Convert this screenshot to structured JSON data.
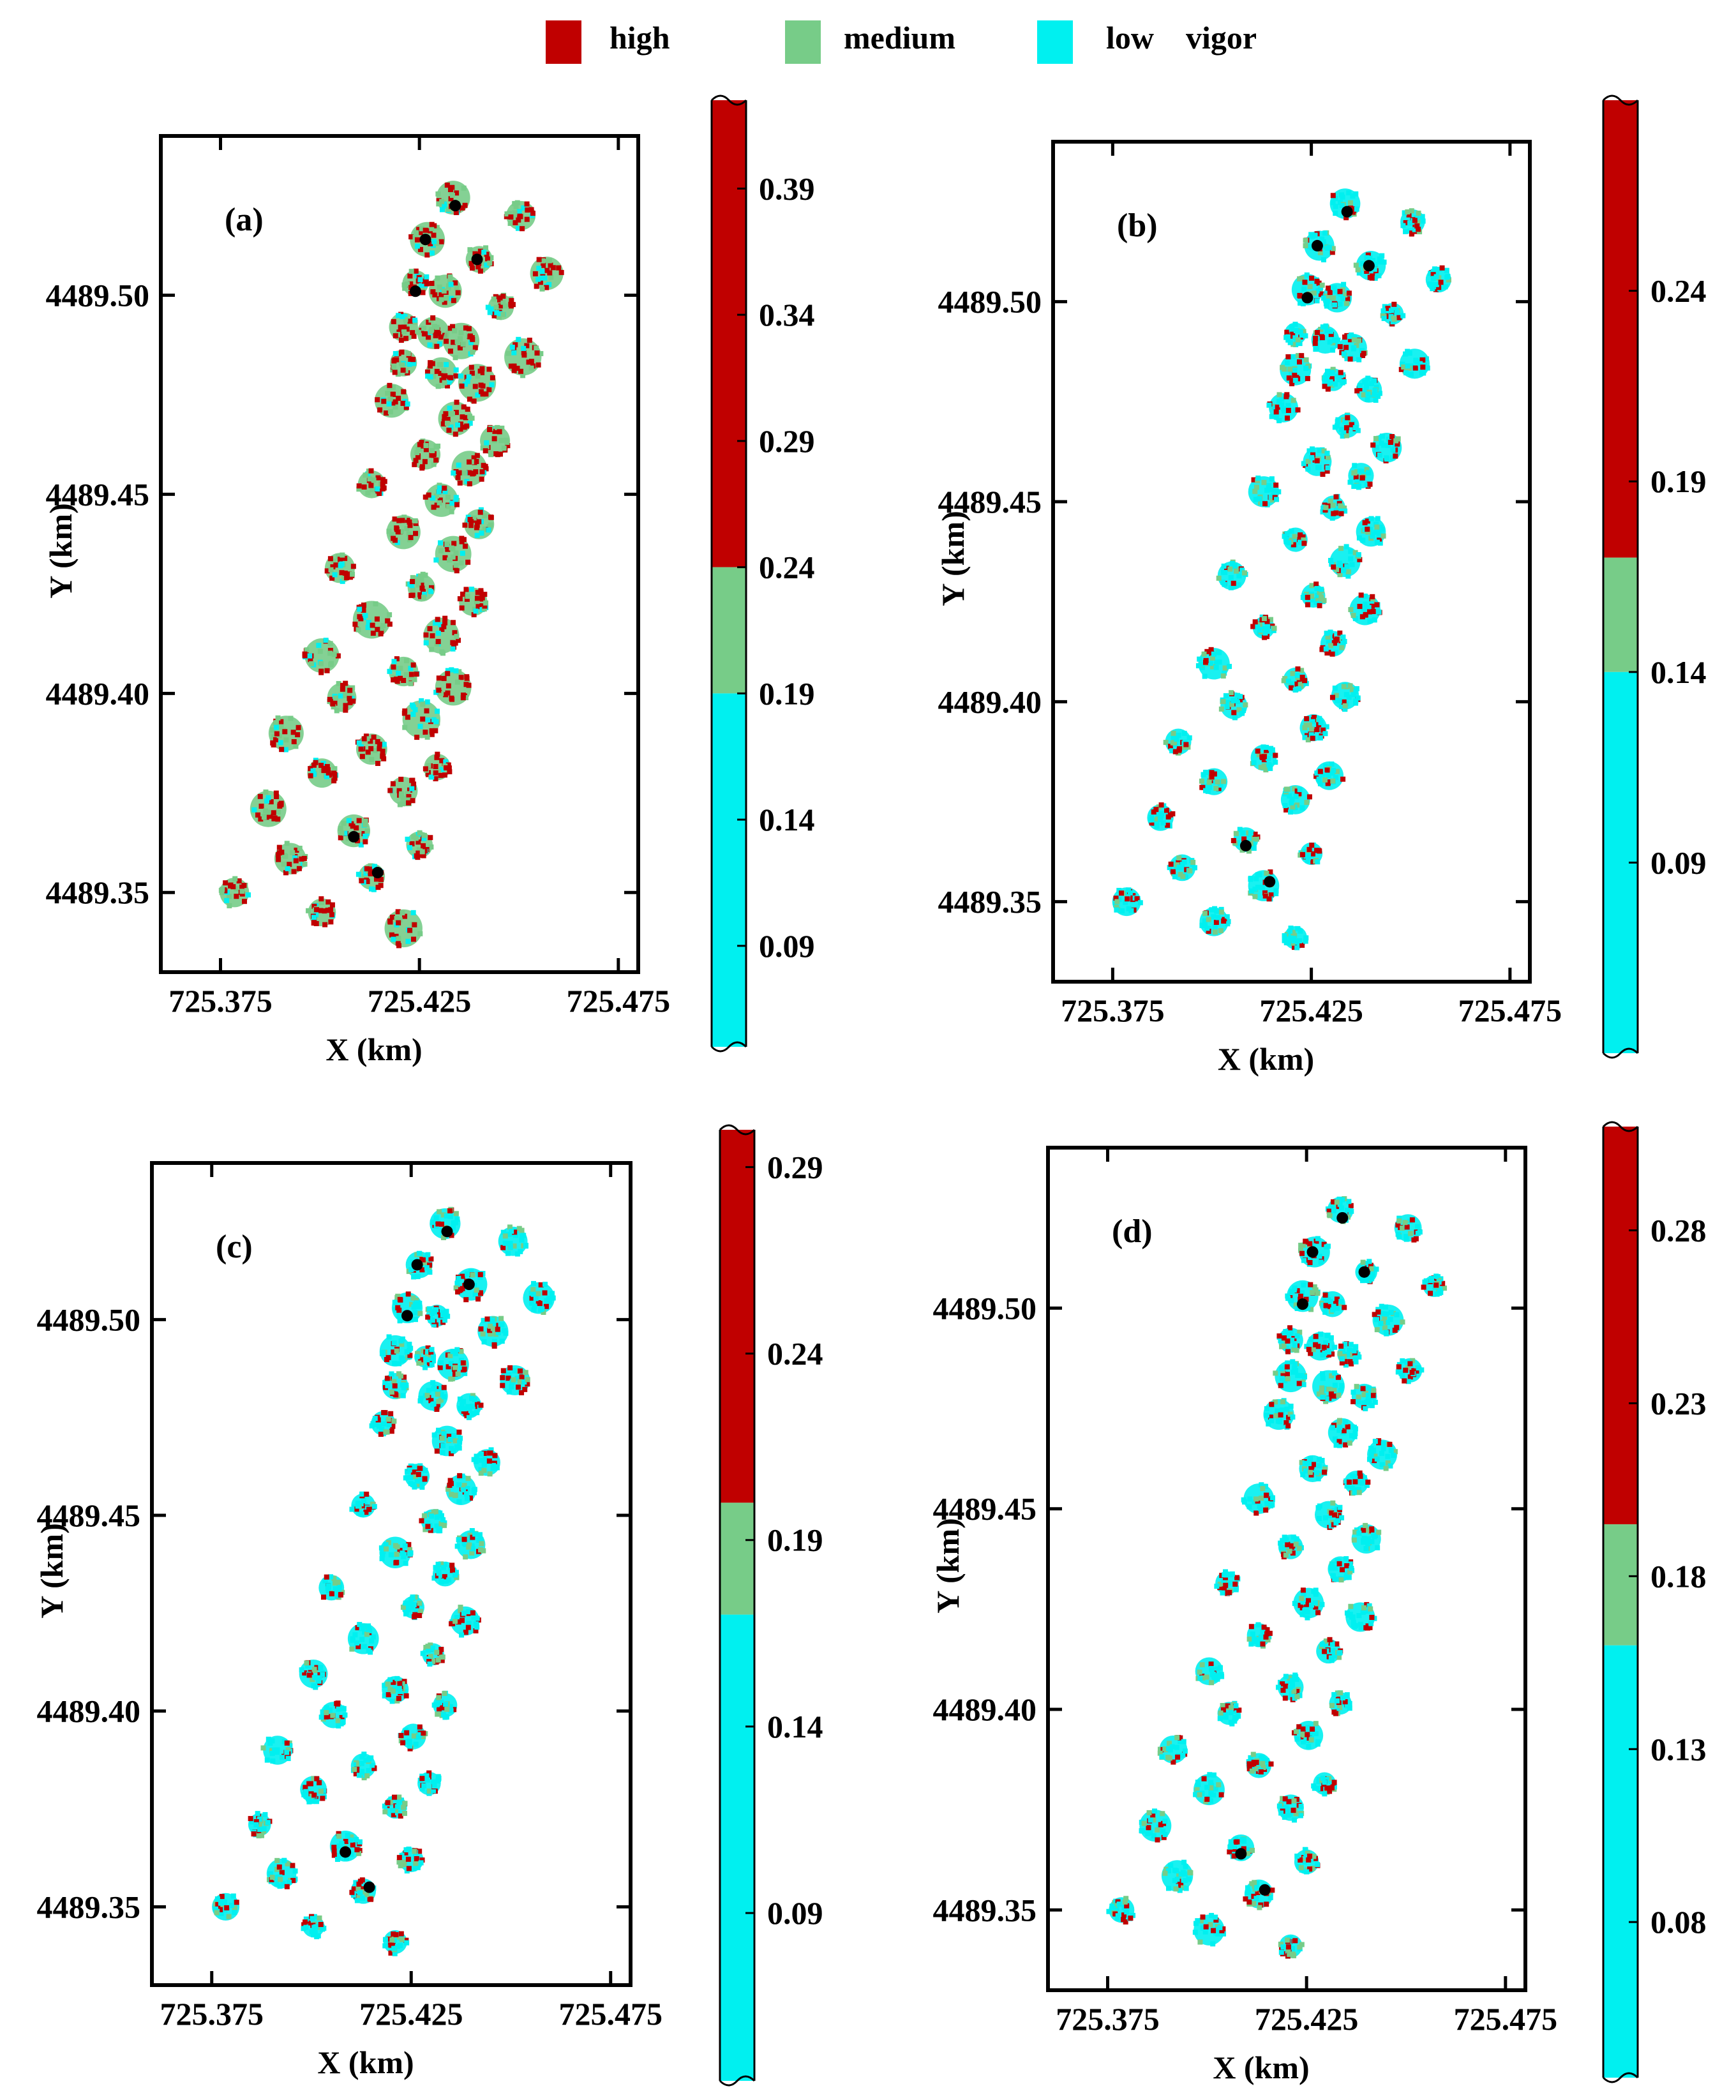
{
  "legend": [
    {
      "label": "high",
      "color": "#c00000"
    },
    {
      "label": "medium",
      "color": "#77cc88"
    },
    {
      "label": "low    vigor",
      "color": "#00f0f0"
    }
  ],
  "chart_data": [
    {
      "type": "scatter",
      "title": "(a)",
      "xlabel": "X (km)",
      "ylabel": "Y (km)",
      "xlim": [
        725.36,
        725.48
      ],
      "ylim": [
        4489.33,
        4489.54
      ],
      "xticks": [
        725.375,
        725.425,
        725.475
      ],
      "xtick_labels": [
        "725.375",
        "725.425",
        "725.475"
      ],
      "yticks": [
        4489.35,
        4489.4,
        4489.45,
        4489.5
      ],
      "ytick_labels": [
        "4489.35",
        "4489.40",
        "4489.45",
        "4489.50"
      ],
      "colorbar": {
        "range": [
          0.05,
          0.425
        ],
        "medium_range": [
          0.19,
          0.24
        ],
        "ticks": [
          0.09,
          0.14,
          0.19,
          0.24,
          0.29,
          0.34,
          0.39
        ],
        "tick_labels": [
          "0.09",
          "0.14",
          "0.19",
          "0.24",
          "0.29",
          "0.34",
          "0.39"
        ]
      }
    },
    {
      "type": "scatter",
      "title": "(b)",
      "xlabel": "X (km)",
      "ylabel": "Y (km)",
      "xlim": [
        725.36,
        725.48
      ],
      "ylim": [
        4489.33,
        4489.54
      ],
      "xticks": [
        725.375,
        725.425,
        725.475
      ],
      "xtick_labels": [
        "725.375",
        "725.425",
        "725.475"
      ],
      "yticks": [
        4489.35,
        4489.4,
        4489.45,
        4489.5
      ],
      "ytick_labels": [
        "4489.35",
        "4489.40",
        "4489.45",
        "4489.50"
      ],
      "colorbar": {
        "range": [
          0.04,
          0.29
        ],
        "medium_range": [
          0.14,
          0.17
        ],
        "ticks": [
          0.09,
          0.14,
          0.19,
          0.24
        ],
        "tick_labels": [
          "0.09",
          "0.14",
          "0.19",
          "0.24"
        ]
      }
    },
    {
      "type": "scatter",
      "title": "(c)",
      "xlabel": "X (km)",
      "ylabel": "Y (km)",
      "xlim": [
        725.36,
        725.48
      ],
      "ylim": [
        4489.33,
        4489.54
      ],
      "xticks": [
        725.375,
        725.425,
        725.475
      ],
      "xtick_labels": [
        "725.375",
        "725.425",
        "725.475"
      ],
      "yticks": [
        4489.35,
        4489.4,
        4489.45,
        4489.5
      ],
      "ytick_labels": [
        "4489.35",
        "4489.40",
        "4489.45",
        "4489.50"
      ],
      "colorbar": {
        "range": [
          0.045,
          0.3
        ],
        "medium_range": [
          0.17,
          0.2
        ],
        "ticks": [
          0.09,
          0.14,
          0.19,
          0.24,
          0.29
        ],
        "tick_labels": [
          "0.09",
          "0.14",
          "0.19",
          "0.24",
          "0.29"
        ]
      }
    },
    {
      "type": "scatter",
      "title": "(d)",
      "xlabel": "X (km)",
      "ylabel": "Y (km)",
      "xlim": [
        725.36,
        725.48
      ],
      "ylim": [
        4489.33,
        4489.54
      ],
      "xticks": [
        725.375,
        725.425,
        725.475
      ],
      "xtick_labels": [
        "725.375",
        "725.425",
        "725.475"
      ],
      "yticks": [
        4489.35,
        4489.4,
        4489.45,
        4489.5
      ],
      "ytick_labels": [
        "4489.35",
        "4489.40",
        "4489.45",
        "4489.50"
      ],
      "colorbar": {
        "range": [
          0.035,
          0.31
        ],
        "medium_range": [
          0.16,
          0.195
        ],
        "ticks": [
          0.08,
          0.13,
          0.18,
          0.23,
          0.28
        ],
        "tick_labels": [
          "0.08",
          "0.13",
          "0.18",
          "0.23",
          "0.28"
        ]
      }
    }
  ],
  "trees": [
    {
      "x": 725.4335,
      "y": 4489.5245
    },
    {
      "x": 725.4505,
      "y": 4489.52
    },
    {
      "x": 725.457,
      "y": 4489.5055
    },
    {
      "x": 725.427,
      "y": 4489.514
    },
    {
      "x": 725.44,
      "y": 4489.509
    },
    {
      "x": 725.424,
      "y": 4489.503
    },
    {
      "x": 725.4315,
      "y": 4489.501
    },
    {
      "x": 725.4455,
      "y": 4489.497
    },
    {
      "x": 725.421,
      "y": 4489.492
    },
    {
      "x": 725.4285,
      "y": 4489.4905
    },
    {
      "x": 725.4355,
      "y": 4489.4885
    },
    {
      "x": 725.451,
      "y": 4489.4845
    },
    {
      "x": 725.421,
      "y": 4489.483
    },
    {
      "x": 725.4305,
      "y": 4489.4805
    },
    {
      "x": 725.4395,
      "y": 4489.478
    },
    {
      "x": 725.418,
      "y": 4489.4735
    },
    {
      "x": 725.434,
      "y": 4489.469
    },
    {
      "x": 725.444,
      "y": 4489.4635
    },
    {
      "x": 725.4265,
      "y": 4489.46
    },
    {
      "x": 725.4375,
      "y": 4489.4565
    },
    {
      "x": 725.413,
      "y": 4489.4525
    },
    {
      "x": 725.4305,
      "y": 4489.4485
    },
    {
      "x": 725.44,
      "y": 4489.4425
    },
    {
      "x": 725.421,
      "y": 4489.4405
    },
    {
      "x": 725.4335,
      "y": 4489.435
    },
    {
      "x": 725.405,
      "y": 4489.4315
    },
    {
      "x": 725.4255,
      "y": 4489.4265
    },
    {
      "x": 725.4385,
      "y": 4489.423
    },
    {
      "x": 725.413,
      "y": 4489.4185
    },
    {
      "x": 725.4305,
      "y": 4489.4145
    },
    {
      "x": 725.4005,
      "y": 4489.4095
    },
    {
      "x": 725.421,
      "y": 4489.4055
    },
    {
      "x": 725.4335,
      "y": 4489.4015
    },
    {
      "x": 725.4055,
      "y": 4489.399
    },
    {
      "x": 725.4255,
      "y": 4489.3935
    },
    {
      "x": 725.3915,
      "y": 4489.39
    },
    {
      "x": 725.413,
      "y": 4489.386
    },
    {
      "x": 725.4295,
      "y": 4489.3815
    },
    {
      "x": 725.4005,
      "y": 4489.38
    },
    {
      "x": 725.421,
      "y": 4489.3755
    },
    {
      "x": 725.387,
      "y": 4489.371
    },
    {
      "x": 725.4085,
      "y": 4489.3655
    },
    {
      "x": 725.425,
      "y": 4489.362
    },
    {
      "x": 725.3925,
      "y": 4489.3585
    },
    {
      "x": 725.413,
      "y": 4489.354
    },
    {
      "x": 725.3785,
      "y": 4489.35
    },
    {
      "x": 725.4005,
      "y": 4489.345
    },
    {
      "x": 725.421,
      "y": 4489.341
    }
  ],
  "black_markers": [
    {
      "x": 725.4265,
      "y": 4489.514
    },
    {
      "x": 725.4395,
      "y": 4489.509
    },
    {
      "x": 725.424,
      "y": 4489.501
    },
    {
      "x": 725.434,
      "y": 4489.5225
    },
    {
      "x": 725.4085,
      "y": 4489.364
    },
    {
      "x": 725.4145,
      "y": 4489.355
    }
  ]
}
